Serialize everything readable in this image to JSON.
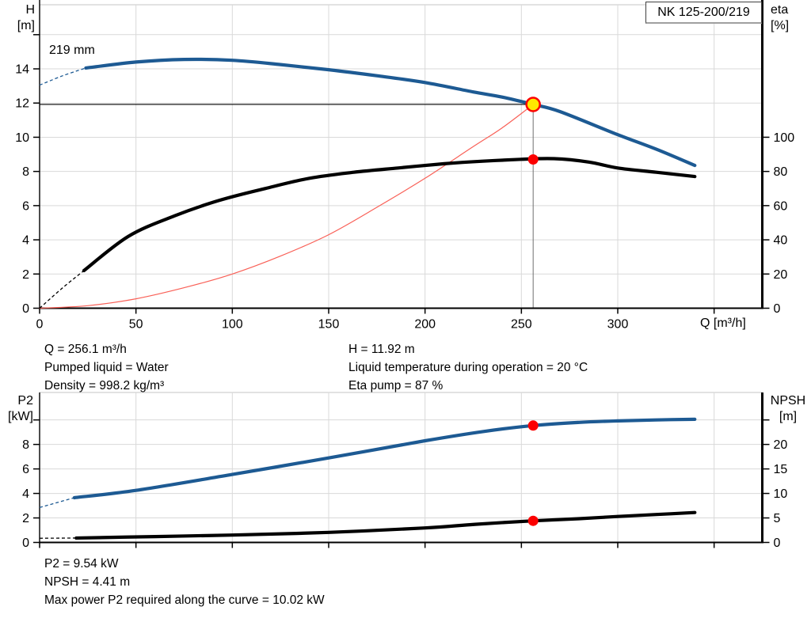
{
  "ui": {
    "title_box": "NK 125-200/219",
    "curve_label": "219 mm",
    "axis_labels": {
      "h": "H",
      "h_unit": "[m]",
      "eta": "eta",
      "eta_unit": "[%]",
      "q": "Q [m³/h]",
      "p2": "P2",
      "p2_unit": "[kW]",
      "npsh": "NPSH",
      "npsh_unit": "[m]"
    },
    "annotations_mid_left": [
      "Q = 256.1 m³/h",
      "Pumped liquid = Water",
      "Density = 998.2 kg/m³"
    ],
    "annotations_mid_right": [
      "H = 11.92 m",
      "Liquid temperature during operation = 20 °C",
      "Eta pump = 87 %"
    ],
    "annotations_bottom": [
      "P2 = 9.54 kW",
      "NPSH = 4.41 m",
      "Max power P2 required along the curve = 10.02 kW"
    ]
  },
  "duty_point": {
    "q_m3h": 256.1,
    "h_m": 11.92,
    "eta_pct": 87,
    "p2_kw": 9.54,
    "npsh_m": 4.41,
    "p2_max_kw": 10.02
  },
  "colors": {
    "curve_blue": "#1d5a93",
    "curve_black": "#000000",
    "system_curve_red": "#f96057",
    "marker_red": "#fc0000",
    "marker_yellow": "#ffe800",
    "grid": "#d9d9d9",
    "plot_top_border": "#c6c6c6",
    "duty_vline": "#707070",
    "duty_hline": "#000000",
    "axis": "#000000"
  },
  "chart_data": [
    {
      "type": "line",
      "title": "NK 125-200/219",
      "x": {
        "label": "Q [m³/h]",
        "min": 0,
        "max": 375,
        "ticks": [
          0,
          50,
          100,
          150,
          200,
          250,
          300,
          350
        ],
        "tick_labels": [
          0,
          50,
          100,
          150,
          200,
          250,
          300
        ]
      },
      "y": {
        "label": "H [m]",
        "min": 0,
        "max": 17.75,
        "ticks": [
          0,
          2,
          4,
          6,
          8,
          10,
          12,
          14,
          16
        ],
        "tick_labels": [
          0,
          2,
          4,
          6,
          8,
          10,
          12,
          14
        ]
      },
      "y2": {
        "label": "eta [%]",
        "min": 0,
        "max": 177.5,
        "ticks": [
          0,
          20,
          40,
          60,
          80,
          100
        ],
        "tick_labels": [
          0,
          20,
          40,
          60,
          80,
          100
        ]
      },
      "series": [
        {
          "name": "system-curve",
          "axis": "y",
          "color": "system_curve_red",
          "width": 1.2,
          "points": [
            [
              0,
              0
            ],
            [
              25,
              0.15
            ],
            [
              50,
              0.55
            ],
            [
              75,
              1.2
            ],
            [
              100,
              2.0
            ],
            [
              125,
              3.05
            ],
            [
              150,
              4.3
            ],
            [
              175,
              5.9
            ],
            [
              200,
              7.6
            ],
            [
              225,
              9.45
            ],
            [
              240,
              10.55
            ],
            [
              256.1,
              11.92
            ]
          ]
        },
        {
          "name": "eta-curve",
          "axis": "y2",
          "color": "curve_black",
          "width": 4.2,
          "dash_points": [
            [
              0,
              0
            ],
            [
              12,
              12
            ],
            [
              23,
              22
            ]
          ],
          "points": [
            [
              23,
              22
            ],
            [
              46,
              42
            ],
            [
              70,
              54
            ],
            [
              93,
              63
            ],
            [
              117,
              70
            ],
            [
              140,
              76
            ],
            [
              163,
              79.5
            ],
            [
              186,
              82
            ],
            [
              210,
              84.5
            ],
            [
              230,
              86
            ],
            [
              250,
              87.1
            ],
            [
              267,
              87.5
            ],
            [
              285,
              85.5
            ],
            [
              300,
              82
            ],
            [
              320,
              79.5
            ],
            [
              340,
              77
            ]
          ]
        },
        {
          "name": "head-curve-219mm",
          "label": "219 mm",
          "axis": "y",
          "color": "curve_blue",
          "width": 4.2,
          "dash_points": [
            [
              0,
              13.05
            ],
            [
              12,
              13.6
            ],
            [
              24,
              14.05
            ]
          ],
          "points": [
            [
              24,
              14.05
            ],
            [
              50,
              14.4
            ],
            [
              75,
              14.55
            ],
            [
              100,
              14.5
            ],
            [
              125,
              14.25
            ],
            [
              150,
              13.95
            ],
            [
              175,
              13.6
            ],
            [
              200,
              13.2
            ],
            [
              225,
              12.65
            ],
            [
              240,
              12.35
            ],
            [
              256.1,
              11.92
            ],
            [
              270,
              11.5
            ],
            [
              300,
              10.15
            ],
            [
              320,
              9.3
            ],
            [
              340,
              8.35
            ]
          ]
        }
      ],
      "ref_lines": [
        {
          "name": "duty-h-line",
          "orient": "h",
          "value": 11.92,
          "from": 0,
          "to": 256.1,
          "color": "duty_hline",
          "width": 1.2
        },
        {
          "name": "duty-q-line",
          "orient": "v",
          "value": 256.1,
          "from": 0,
          "to": 11.92,
          "color": "duty_vline",
          "width": 1
        }
      ],
      "markers": [
        {
          "name": "eta-duty-marker",
          "x": 256.1,
          "y": 87,
          "axis": "y2",
          "fill": "marker_red",
          "r": 6.5
        },
        {
          "name": "duty-point-marker",
          "x": 256.1,
          "y": 11.92,
          "axis": "y",
          "fill": "marker_yellow",
          "stroke": "marker_red",
          "sw": 2.5,
          "r": 8.5
        }
      ]
    },
    {
      "type": "line",
      "title": "",
      "x": {
        "label": "Q [m³/h]",
        "min": 0,
        "max": 375,
        "ticks": [
          0,
          50,
          100,
          150,
          200,
          250,
          300,
          350
        ],
        "tick_labels": []
      },
      "y": {
        "label": "P2 [kW]",
        "min": 0,
        "max": 12.24,
        "ticks": [
          0,
          2,
          4,
          6,
          8,
          10
        ],
        "tick_labels": [
          0,
          2,
          4,
          6,
          8
        ]
      },
      "y2": {
        "label": "NPSH [m]",
        "min": 0,
        "max": 30.6,
        "ticks": [
          0,
          5,
          10,
          15,
          20,
          25
        ],
        "tick_labels": [
          0,
          5,
          10,
          15,
          20
        ]
      },
      "series": [
        {
          "name": "npsh-curve",
          "axis": "y2",
          "color": "curve_black",
          "width": 4.2,
          "dash_points": [
            [
              0,
              0.85
            ],
            [
              19,
              0.9
            ]
          ],
          "points": [
            [
              19,
              0.9
            ],
            [
              60,
              1.2
            ],
            [
              100,
              1.5
            ],
            [
              150,
              2.05
            ],
            [
              200,
              2.95
            ],
            [
              226,
              3.7
            ],
            [
              256.1,
              4.41
            ],
            [
              280,
              4.85
            ],
            [
              300,
              5.3
            ],
            [
              320,
              5.7
            ],
            [
              340,
              6.1
            ]
          ]
        },
        {
          "name": "p2-curve",
          "axis": "y",
          "color": "curve_blue",
          "width": 4.2,
          "dash_points": [
            [
              0,
              2.85
            ],
            [
              18,
              3.65
            ]
          ],
          "points": [
            [
              18,
              3.65
            ],
            [
              50,
              4.25
            ],
            [
              100,
              5.55
            ],
            [
              150,
              6.9
            ],
            [
              200,
              8.3
            ],
            [
              230,
              9.05
            ],
            [
              256.1,
              9.54
            ],
            [
              280,
              9.8
            ],
            [
              300,
              9.92
            ],
            [
              320,
              10.0
            ],
            [
              340,
              10.05
            ]
          ]
        }
      ],
      "ref_lines": [],
      "markers": [
        {
          "name": "p2-duty-marker",
          "x": 256.1,
          "y": 9.54,
          "axis": "y",
          "fill": "marker_red",
          "r": 6.5
        },
        {
          "name": "npsh-duty-marker",
          "x": 256.1,
          "y": 4.41,
          "axis": "y2",
          "fill": "marker_red",
          "r": 6.5
        }
      ]
    }
  ]
}
